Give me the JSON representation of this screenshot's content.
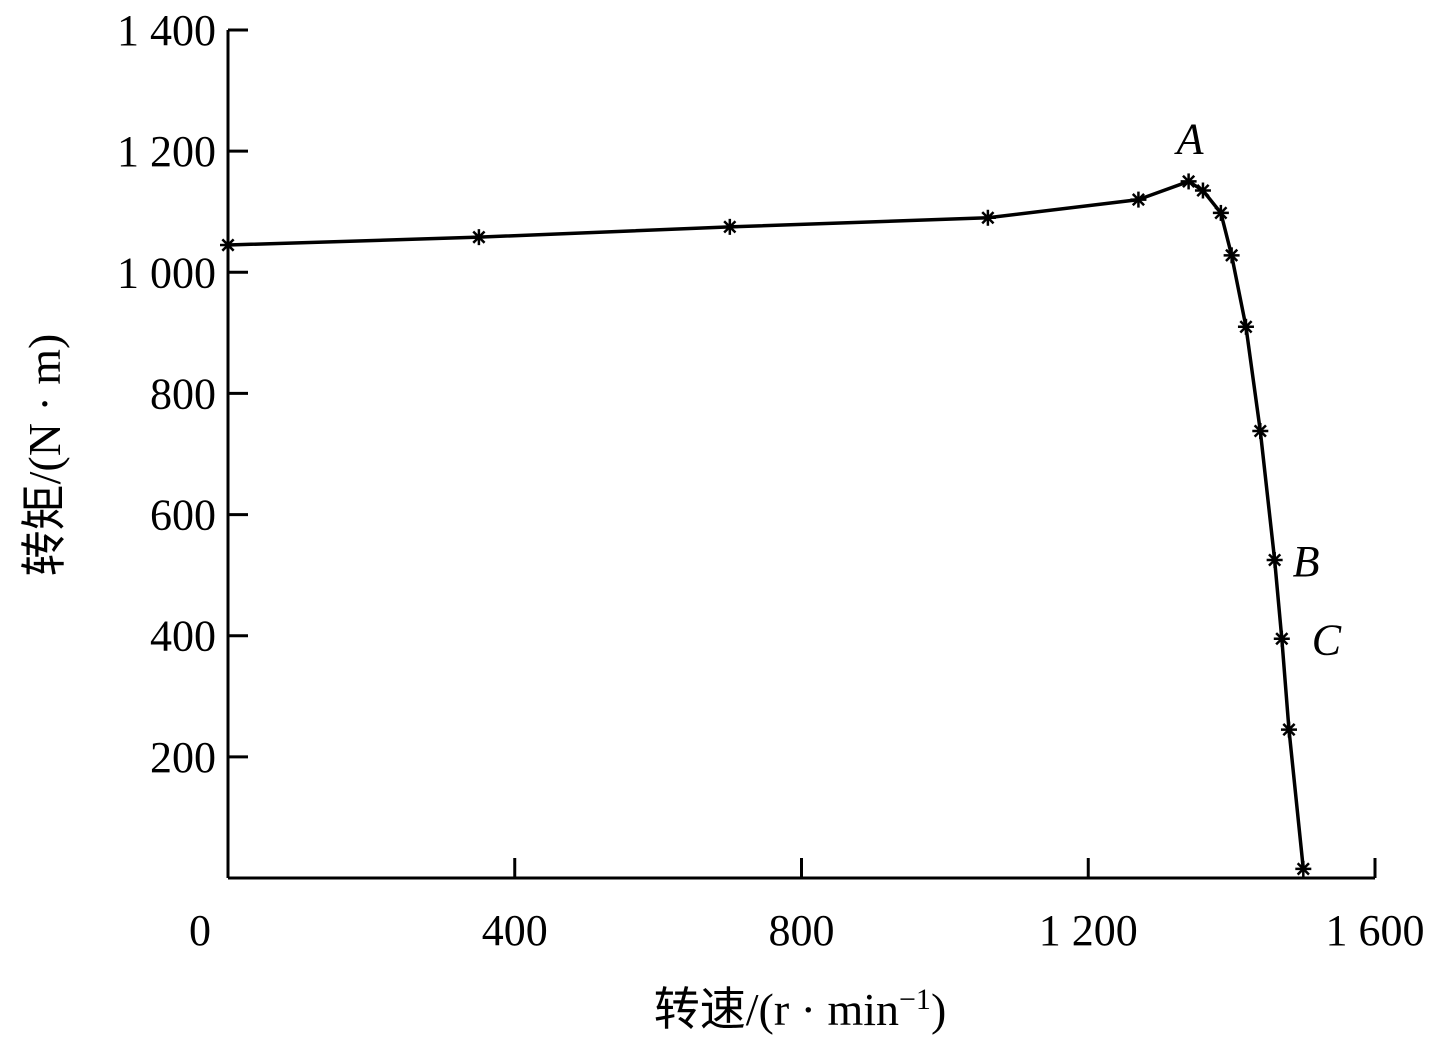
{
  "chart_data": {
    "type": "line",
    "xlabel": "转速/(r · min",
    "xlabel_sup": "−1",
    "xlabel_close": ")",
    "ylabel": "转矩/(N · m)",
    "xlim": [
      0,
      1600
    ],
    "ylim": [
      0,
      1400
    ],
    "x_ticks": [
      0,
      400,
      800,
      1200,
      1600
    ],
    "x_tick_labels": [
      "0",
      "400",
      "800",
      "1 200",
      "1 600"
    ],
    "y_ticks": [
      200,
      400,
      600,
      800,
      1000,
      1200,
      1400
    ],
    "y_tick_labels": [
      "200",
      "400",
      "600",
      "800",
      "1 000",
      "1 200",
      "1 400"
    ],
    "grid": false,
    "series": [
      {
        "marker": "asterisk",
        "color": "#000000",
        "x": [
          0,
          350,
          700,
          1060,
          1270,
          1340,
          1360,
          1385,
          1400,
          1420,
          1440,
          1460,
          1470,
          1480,
          1500
        ],
        "y": [
          1045,
          1058,
          1075,
          1090,
          1120,
          1150,
          1135,
          1098,
          1028,
          910,
          738,
          525,
          395,
          245,
          15
        ]
      }
    ],
    "annotations": [
      {
        "text": "A",
        "x": 1340,
        "y": 1150
      },
      {
        "text": "B",
        "x": 1460,
        "y": 525
      },
      {
        "text": "C",
        "x": 1470,
        "y": 395
      }
    ]
  }
}
